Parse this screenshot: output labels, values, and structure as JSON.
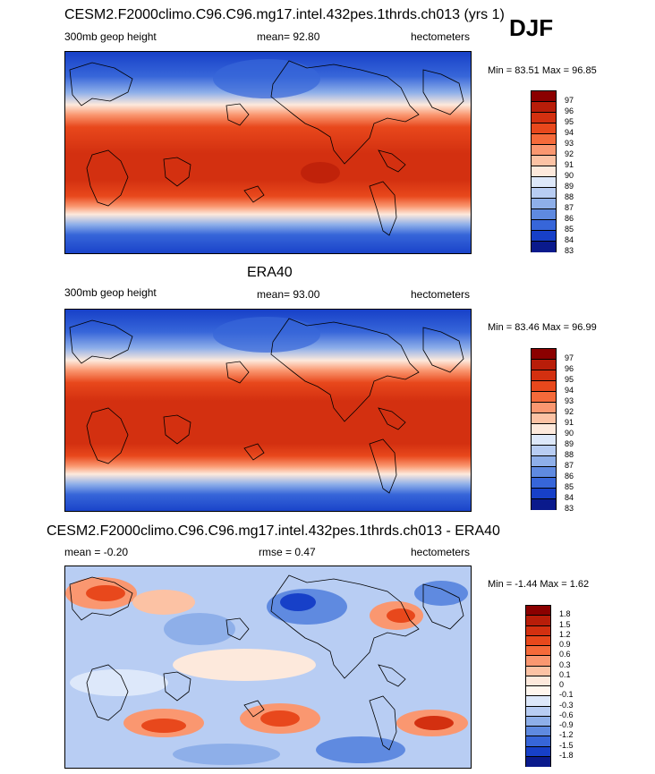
{
  "season_label": "DJF",
  "panels": [
    {
      "title": "CESM2.F2000climo.C96.C96.mg17.intel.432pes.1thrds.ch013 (yrs 1)",
      "left_label": "300mb geop height",
      "center_label": "mean=  92.80",
      "right_label": "hectometers",
      "minmax": "Min =  83.51 Max =  96.85",
      "colorbar_labels": [
        "97",
        "96",
        "95",
        "94",
        "93",
        "92",
        "91",
        "90",
        "89",
        "88",
        "87",
        "86",
        "85",
        "84",
        "83"
      ],
      "colorbar_colors": [
        "#8b0000",
        "#b81d09",
        "#d33010",
        "#e8481c",
        "#f56a3a",
        "#fa9770",
        "#fcc2a4",
        "#fde9dc",
        "#dde8fa",
        "#b8cdf3",
        "#8eafe9",
        "#5f8ae0",
        "#3766d9",
        "#1740c8",
        "#0a1a8c"
      ]
    },
    {
      "title": "ERA40",
      "left_label": "300mb geop height",
      "center_label": "mean=  93.00",
      "right_label": "hectometers",
      "minmax": "Min =  83.46 Max =  96.99",
      "colorbar_labels": [
        "97",
        "96",
        "95",
        "94",
        "93",
        "92",
        "91",
        "90",
        "89",
        "88",
        "87",
        "86",
        "85",
        "84",
        "83"
      ],
      "colorbar_colors": [
        "#8b0000",
        "#b81d09",
        "#d33010",
        "#e8481c",
        "#f56a3a",
        "#fa9770",
        "#fcc2a4",
        "#fde9dc",
        "#dde8fa",
        "#b8cdf3",
        "#8eafe9",
        "#5f8ae0",
        "#3766d9",
        "#1740c8",
        "#0a1a8c"
      ]
    },
    {
      "title": "CESM2.F2000climo.C96.C96.mg17.intel.432pes.1thrds.ch013 - ERA40",
      "left_label": "mean =  -0.20",
      "center_label": "rmse =   0.47",
      "right_label": "hectometers",
      "minmax": "Min =  -1.44 Max =   1.62",
      "colorbar_labels": [
        "1.8",
        "1.5",
        "1.2",
        "0.9",
        "0.6",
        "0.3",
        "0.1",
        "0",
        "-0.1",
        "-0.3",
        "-0.6",
        "-0.9",
        "-1.2",
        "-1.5",
        "-1.8"
      ],
      "colorbar_colors": [
        "#8b0000",
        "#b81d09",
        "#d33010",
        "#e8481c",
        "#f56a3a",
        "#fa9770",
        "#fcc2a4",
        "#fde9dc",
        "#fff6ee",
        "#dde8fa",
        "#b8cdf3",
        "#8eafe9",
        "#5f8ae0",
        "#3766d9",
        "#1740c8",
        "#0a1a8c"
      ]
    }
  ],
  "colors": {
    "deep_blue": "#1740c8",
    "mid_blue": "#3766d9",
    "light_blue": "#8eafe9",
    "pale": "#fde9dc",
    "peach": "#fa9770",
    "orange": "#e8481c",
    "red": "#d33010",
    "coast": "#000000"
  }
}
